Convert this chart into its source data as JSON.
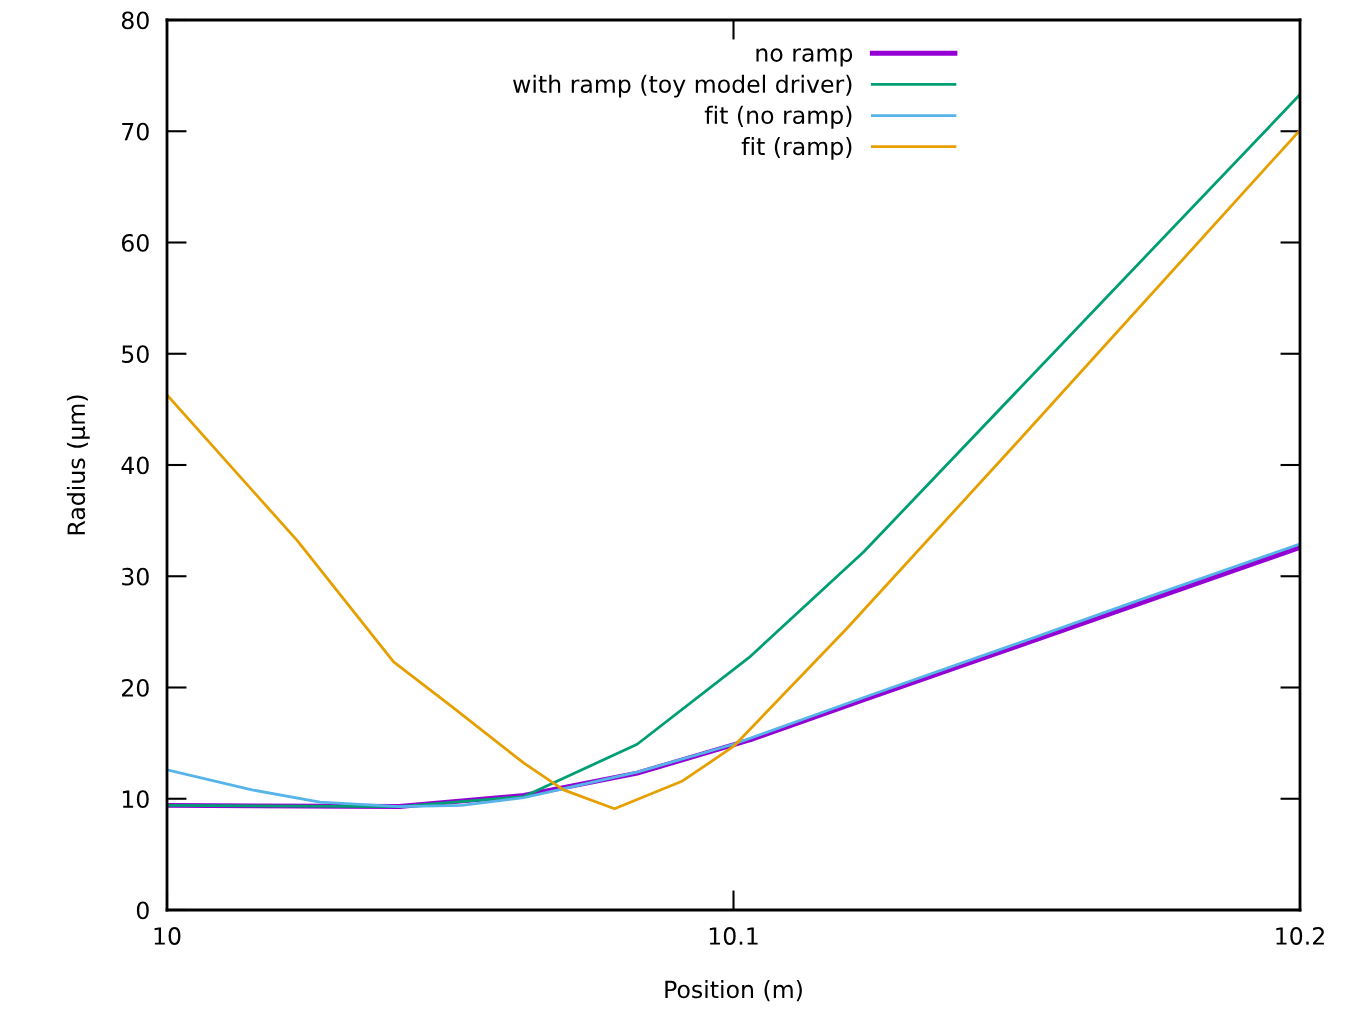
{
  "chart_data": {
    "type": "line",
    "xlabel": "Position (m)",
    "ylabel": "Radius (µm)",
    "xlim": [
      10,
      10.2
    ],
    "ylim": [
      0,
      80
    ],
    "xticks": [
      10,
      10.1,
      10.2
    ],
    "yticks": [
      0,
      10,
      20,
      30,
      40,
      50,
      60,
      70,
      80
    ],
    "grid": false,
    "legend": "top",
    "series": [
      {
        "name": "no ramp",
        "color": "#9400d3",
        "x": [
          10,
          10.041,
          10.063,
          10.083,
          10.103,
          10.123,
          10.2
        ],
        "values": [
          9.4,
          9.3,
          10.3,
          12.3,
          15.3,
          18.9,
          32.6
        ]
      },
      {
        "name": "with ramp (toy model driver)",
        "color": "#009e73",
        "x": [
          10,
          10.041,
          10.063,
          10.083,
          10.103,
          10.123,
          10.2
        ],
        "values": [
          9.4,
          9.3,
          10.2,
          14.9,
          22.8,
          32.2,
          73.3
        ]
      },
      {
        "name": "fit (no ramp)",
        "color": "#56b4e9",
        "x": [
          10,
          10.015,
          10.027,
          10.041,
          10.052,
          10.063,
          10.083,
          10.1,
          10.123,
          10.147,
          10.173,
          10.2
        ],
        "values": [
          12.6,
          10.8,
          9.7,
          9.3,
          9.4,
          10.1,
          12.4,
          14.9,
          19.1,
          23.4,
          28.1,
          32.9
        ]
      },
      {
        "name": "fit (ramp)",
        "color": "#e69f00",
        "x": [
          10,
          10.023,
          10.04,
          10.05,
          10.063,
          10.07,
          10.079,
          10.091,
          10.1,
          10.12,
          10.15,
          10.2
        ],
        "values": [
          46.3,
          33.2,
          22.3,
          18.4,
          13.2,
          10.8,
          9.1,
          11.6,
          14.7,
          25.3,
          42.0,
          70.1
        ]
      }
    ]
  }
}
